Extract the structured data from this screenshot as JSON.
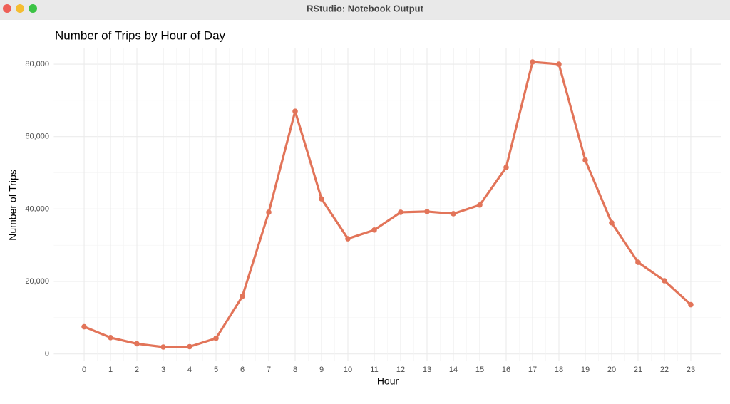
{
  "window": {
    "title": "RStudio: Notebook Output"
  },
  "chart_data": {
    "type": "line",
    "title": "Number of Trips by Hour of Day",
    "x_label": "Hour",
    "y_label": "Number of Trips",
    "x": [
      0,
      1,
      2,
      3,
      4,
      5,
      6,
      7,
      8,
      9,
      10,
      11,
      12,
      13,
      14,
      15,
      16,
      17,
      18,
      19,
      20,
      21,
      22,
      23
    ],
    "series": [
      {
        "name": "Trips",
        "color": "#e27459",
        "values": [
          7500,
          4500,
          2800,
          1900,
          2000,
          4300,
          15900,
          39100,
          67000,
          42800,
          31800,
          34200,
          39100,
          39300,
          38700,
          41100,
          51500,
          80600,
          80000,
          53500,
          36200,
          25300,
          20200,
          13600
        ]
      }
    ],
    "xlim": [
      -1.15,
      24.15
    ],
    "ylim": [
      -2035,
      84535
    ],
    "xticks": [
      0,
      1,
      2,
      3,
      4,
      5,
      6,
      7,
      8,
      9,
      10,
      11,
      12,
      13,
      14,
      15,
      16,
      17,
      18,
      19,
      20,
      21,
      22,
      23
    ],
    "yticks": [
      0,
      {
        "value": 20000,
        "label": "20,000"
      },
      {
        "value": 40000,
        "label": "40,000"
      },
      {
        "value": 60000,
        "label": "60,000"
      },
      {
        "value": 80000,
        "label": "80,000"
      }
    ],
    "grid": true
  }
}
